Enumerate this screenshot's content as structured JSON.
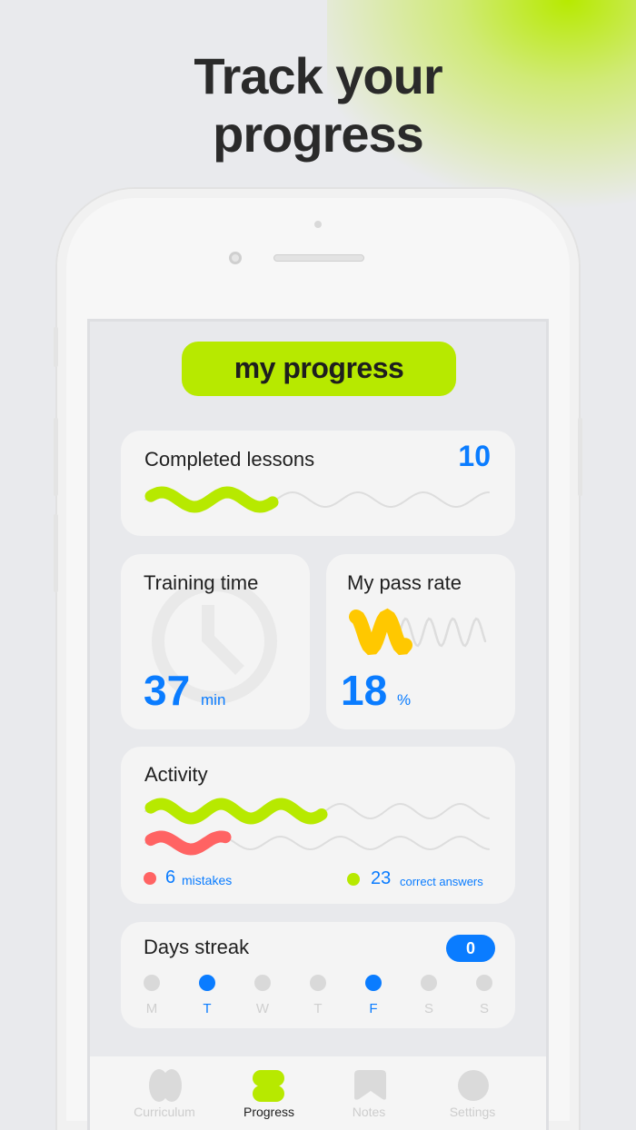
{
  "headline": {
    "line1": "Track your",
    "line2": "progress"
  },
  "screen_title": "my progress",
  "colors": {
    "accent": "#b7e900",
    "blue": "#0a7cff",
    "yellow": "#ffc800",
    "red": "#ff6363"
  },
  "completed": {
    "label": "Completed lessons",
    "value": "10"
  },
  "training": {
    "label": "Training time",
    "value": "37",
    "unit": "min",
    "icon": "clock-icon"
  },
  "pass_rate": {
    "label": "My pass rate",
    "value": "18",
    "unit": "%"
  },
  "activity": {
    "label": "Activity",
    "mistakes": {
      "value": "6",
      "label": "mistakes"
    },
    "correct": {
      "value": "23",
      "label": "correct answers"
    }
  },
  "streak": {
    "label": "Days streak",
    "count": "0",
    "days": [
      {
        "l": "M",
        "active": false
      },
      {
        "l": "T",
        "active": true
      },
      {
        "l": "W",
        "active": false
      },
      {
        "l": "T",
        "active": false
      },
      {
        "l": "F",
        "active": true
      },
      {
        "l": "S",
        "active": false
      },
      {
        "l": "S",
        "active": false
      }
    ]
  },
  "tabs": [
    {
      "label": "Curriculum",
      "active": false
    },
    {
      "label": "Progress",
      "active": true
    },
    {
      "label": "Notes",
      "active": false
    },
    {
      "label": "Settings",
      "active": false
    }
  ]
}
